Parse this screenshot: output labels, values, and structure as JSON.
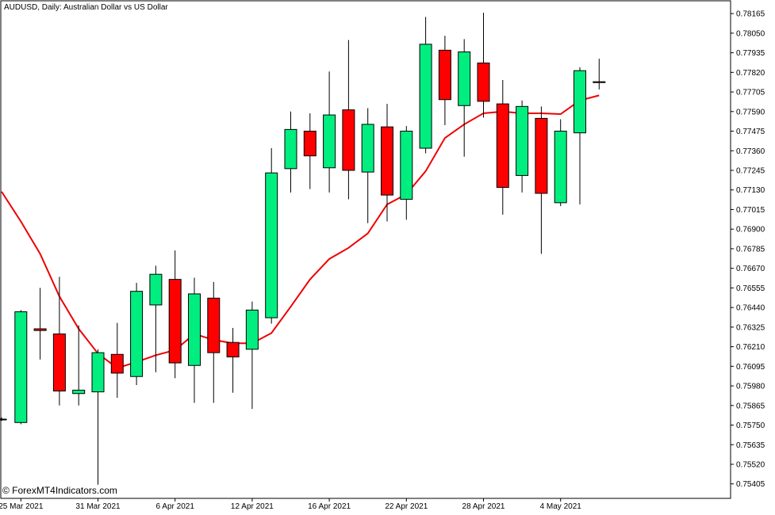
{
  "header": {
    "symbol": "AUDUSD",
    "timeframe": "Daily",
    "description": "Australian Dollar vs US Dollar",
    "title_text": "AUDUSD, Daily:  Australian Dollar vs US Dollar"
  },
  "watermark": "© ForexMT4Indicators.com",
  "colors": {
    "bull": "#00ee7f",
    "bear": "#ff0000",
    "wick": "#000000",
    "ma_line": "#ee0000",
    "axis": "#000000",
    "background": "#ffffff"
  },
  "chart_data": {
    "type": "candlestick",
    "y_axis": {
      "position": "right",
      "range": [
        0.7532,
        0.7824
      ],
      "ticks": [
        "0.78165",
        "0.78050",
        "0.77935",
        "0.77820",
        "0.77705",
        "0.77590",
        "0.77475",
        "0.77360",
        "0.77245",
        "0.77130",
        "0.77015",
        "0.76900",
        "0.76785",
        "0.76670",
        "0.76555",
        "0.76440",
        "0.76325",
        "0.76210",
        "0.76095",
        "0.75980",
        "0.75865",
        "0.75750",
        "0.75635",
        "0.75520",
        "0.75405"
      ]
    },
    "x_axis": {
      "tick_labels": [
        "25 Mar 2021",
        "31 Mar 2021",
        "6 Apr 2021",
        "12 Apr 2021",
        "16 Apr 2021",
        "22 Apr 2021",
        "28 Apr 2021",
        "4 May 2021"
      ],
      "tick_candle_index": [
        1,
        5,
        9,
        13,
        17,
        21,
        25,
        29
      ]
    },
    "candles": [
      {
        "o": 0.75785,
        "h": 0.75795,
        "l": 0.75775,
        "c": 0.75785
      },
      {
        "o": 0.75765,
        "h": 0.76425,
        "l": 0.75755,
        "c": 0.76415
      },
      {
        "o": 0.76315,
        "h": 0.76555,
        "l": 0.76135,
        "c": 0.76305
      },
      {
        "o": 0.76285,
        "h": 0.7662,
        "l": 0.75865,
        "c": 0.7595
      },
      {
        "o": 0.75935,
        "h": 0.76335,
        "l": 0.75865,
        "c": 0.75955
      },
      {
        "o": 0.75945,
        "h": 0.76195,
        "l": 0.754,
        "c": 0.76175
      },
      {
        "o": 0.76165,
        "h": 0.7635,
        "l": 0.7591,
        "c": 0.76055
      },
      {
        "o": 0.76035,
        "h": 0.76585,
        "l": 0.75985,
        "c": 0.76535
      },
      {
        "o": 0.76455,
        "h": 0.76685,
        "l": 0.7606,
        "c": 0.76635
      },
      {
        "o": 0.76605,
        "h": 0.76775,
        "l": 0.76025,
        "c": 0.76115
      },
      {
        "o": 0.761,
        "h": 0.76615,
        "l": 0.7588,
        "c": 0.7652
      },
      {
        "o": 0.76495,
        "h": 0.7659,
        "l": 0.7588,
        "c": 0.76175
      },
      {
        "o": 0.76235,
        "h": 0.7632,
        "l": 0.7594,
        "c": 0.7615
      },
      {
        "o": 0.76195,
        "h": 0.76475,
        "l": 0.75845,
        "c": 0.76425
      },
      {
        "o": 0.7638,
        "h": 0.77375,
        "l": 0.76345,
        "c": 0.7723
      },
      {
        "o": 0.77255,
        "h": 0.7759,
        "l": 0.77115,
        "c": 0.77485
      },
      {
        "o": 0.77475,
        "h": 0.7758,
        "l": 0.77135,
        "c": 0.7733
      },
      {
        "o": 0.7726,
        "h": 0.77825,
        "l": 0.77115,
        "c": 0.7757
      },
      {
        "o": 0.776,
        "h": 0.7801,
        "l": 0.77075,
        "c": 0.77245
      },
      {
        "o": 0.77235,
        "h": 0.7761,
        "l": 0.76935,
        "c": 0.77515
      },
      {
        "o": 0.775,
        "h": 0.77635,
        "l": 0.76945,
        "c": 0.771
      },
      {
        "o": 0.77075,
        "h": 0.77505,
        "l": 0.76955,
        "c": 0.77475
      },
      {
        "o": 0.77375,
        "h": 0.78145,
        "l": 0.77345,
        "c": 0.77985
      },
      {
        "o": 0.7795,
        "h": 0.78035,
        "l": 0.7751,
        "c": 0.7766
      },
      {
        "o": 0.77625,
        "h": 0.78015,
        "l": 0.77325,
        "c": 0.7794
      },
      {
        "o": 0.77875,
        "h": 0.7817,
        "l": 0.77555,
        "c": 0.7765
      },
      {
        "o": 0.77635,
        "h": 0.77775,
        "l": 0.76985,
        "c": 0.77145
      },
      {
        "o": 0.77215,
        "h": 0.77655,
        "l": 0.77115,
        "c": 0.7762
      },
      {
        "o": 0.7755,
        "h": 0.7762,
        "l": 0.76755,
        "c": 0.7711
      },
      {
        "o": 0.77055,
        "h": 0.77545,
        "l": 0.77035,
        "c": 0.77475
      },
      {
        "o": 0.77465,
        "h": 0.7785,
        "l": 0.77045,
        "c": 0.7783
      },
      {
        "o": 0.77765,
        "h": 0.779,
        "l": 0.7772,
        "c": 0.7776
      }
    ],
    "moving_average": [
      0.7712,
      0.76945,
      0.76755,
      0.76505,
      0.76315,
      0.7617,
      0.76085,
      0.7612,
      0.7616,
      0.7619,
      0.76285,
      0.7625,
      0.7623,
      0.7623,
      0.7629,
      0.76445,
      0.76605,
      0.76725,
      0.7679,
      0.76875,
      0.77045,
      0.77105,
      0.7724,
      0.77435,
      0.77515,
      0.7758,
      0.7759,
      0.7758,
      0.7758,
      0.77575,
      0.77655,
      0.77685
    ]
  }
}
